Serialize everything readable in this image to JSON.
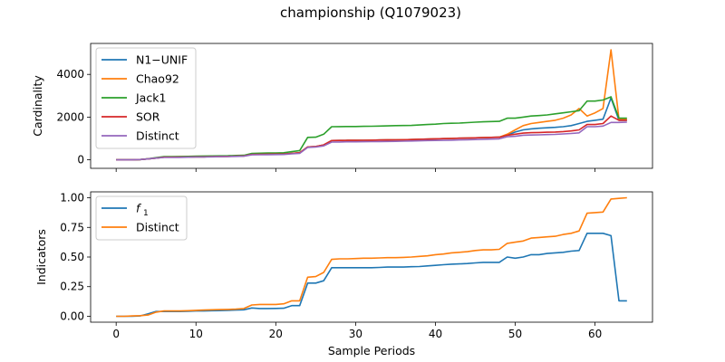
{
  "figure": {
    "title": "championship (Q1079023)"
  },
  "colors": {
    "blue": "#1f77b4",
    "orange": "#ff7f0e",
    "green": "#2ca02c",
    "red": "#d62728",
    "purple": "#9467bd"
  },
  "chart_data": [
    {
      "type": "line",
      "title": "",
      "xlabel": "",
      "ylabel": "Cardinality",
      "xlim": [
        -3.2,
        67.2
      ],
      "ylim": [
        -400,
        5450
      ],
      "xticks": [
        0,
        10,
        20,
        30,
        40,
        50,
        60
      ],
      "yticks": [
        0,
        2000,
        4000
      ],
      "yticklabels": [
        "0",
        "2000",
        "4000"
      ],
      "legend_position": "upper-left",
      "x": [
        0,
        1,
        2,
        3,
        4,
        5,
        6,
        7,
        8,
        9,
        10,
        11,
        12,
        13,
        14,
        15,
        16,
        17,
        18,
        19,
        20,
        21,
        22,
        23,
        24,
        25,
        26,
        27,
        28,
        29,
        30,
        31,
        32,
        33,
        34,
        35,
        36,
        37,
        38,
        39,
        40,
        41,
        42,
        43,
        44,
        45,
        46,
        47,
        48,
        49,
        50,
        51,
        52,
        53,
        54,
        55,
        56,
        57,
        58,
        59,
        60,
        61,
        62,
        63,
        64
      ],
      "series": [
        {
          "name": "N1−UNIF",
          "color": "#1f77b4",
          "values": [
            0,
            0,
            0,
            10,
            40,
            80,
            120,
            120,
            125,
            130,
            140,
            140,
            150,
            155,
            160,
            170,
            180,
            250,
            255,
            260,
            265,
            270,
            300,
            330,
            600,
            620,
            700,
            900,
            905,
            910,
            910,
            915,
            920,
            925,
            930,
            935,
            940,
            950,
            960,
            970,
            980,
            990,
            1000,
            1010,
            1020,
            1030,
            1040,
            1050,
            1060,
            1150,
            1300,
            1400,
            1450,
            1480,
            1500,
            1520,
            1550,
            1600,
            1700,
            1800,
            1850,
            1900,
            2900,
            1850,
            1850
          ]
        },
        {
          "name": "Chao92",
          "color": "#ff7f0e",
          "values": [
            0,
            0,
            0,
            10,
            40,
            80,
            120,
            120,
            125,
            130,
            140,
            140,
            150,
            155,
            160,
            170,
            180,
            250,
            255,
            260,
            265,
            270,
            300,
            330,
            600,
            620,
            700,
            900,
            905,
            910,
            910,
            915,
            920,
            925,
            930,
            935,
            940,
            950,
            960,
            970,
            980,
            990,
            1000,
            1010,
            1020,
            1030,
            1040,
            1050,
            1060,
            1200,
            1400,
            1600,
            1700,
            1750,
            1800,
            1850,
            1950,
            2100,
            2400,
            2050,
            2200,
            2400,
            5150,
            1900,
            1900
          ]
        },
        {
          "name": "Jack1",
          "color": "#2ca02c",
          "values": [
            0,
            0,
            0,
            10,
            50,
            100,
            150,
            150,
            155,
            160,
            170,
            175,
            180,
            185,
            190,
            200,
            210,
            300,
            310,
            315,
            320,
            330,
            380,
            430,
            1050,
            1060,
            1200,
            1550,
            1555,
            1560,
            1560,
            1565,
            1570,
            1580,
            1590,
            1600,
            1605,
            1610,
            1630,
            1650,
            1670,
            1700,
            1710,
            1720,
            1740,
            1760,
            1780,
            1790,
            1800,
            1950,
            1950,
            2000,
            2050,
            2070,
            2100,
            2150,
            2200,
            2250,
            2300,
            2750,
            2750,
            2800,
            2950,
            1950,
            1950
          ]
        },
        {
          "name": "SOR",
          "color": "#d62728",
          "values": [
            0,
            0,
            0,
            10,
            40,
            80,
            120,
            120,
            125,
            130,
            140,
            140,
            150,
            155,
            160,
            170,
            180,
            250,
            255,
            260,
            265,
            270,
            300,
            330,
            600,
            620,
            700,
            900,
            905,
            910,
            910,
            915,
            920,
            925,
            930,
            935,
            940,
            950,
            960,
            970,
            980,
            990,
            1000,
            1010,
            1020,
            1030,
            1040,
            1050,
            1060,
            1150,
            1200,
            1250,
            1270,
            1280,
            1290,
            1300,
            1320,
            1350,
            1400,
            1650,
            1650,
            1700,
            2050,
            1850,
            1850
          ]
        },
        {
          "name": "Distinct",
          "color": "#9467bd",
          "values": [
            0,
            0,
            0,
            10,
            40,
            80,
            110,
            110,
            115,
            120,
            130,
            130,
            140,
            145,
            150,
            160,
            170,
            230,
            235,
            240,
            245,
            250,
            280,
            300,
            580,
            600,
            650,
            830,
            835,
            840,
            840,
            845,
            850,
            855,
            860,
            865,
            870,
            880,
            890,
            900,
            905,
            910,
            920,
            930,
            940,
            950,
            960,
            970,
            980,
            1080,
            1100,
            1150,
            1160,
            1170,
            1180,
            1190,
            1210,
            1230,
            1260,
            1550,
            1550,
            1580,
            1750,
            1750,
            1760
          ]
        }
      ]
    },
    {
      "type": "line",
      "title": "",
      "xlabel": "Sample Periods",
      "ylabel": "Indicators",
      "xlim": [
        -3.2,
        67.2
      ],
      "ylim": [
        -0.05,
        1.05
      ],
      "xticks": [
        0,
        10,
        20,
        30,
        40,
        50,
        60
      ],
      "xticklabels": [
        "0",
        "10",
        "20",
        "30",
        "40",
        "50",
        "60"
      ],
      "yticks": [
        0,
        0.25,
        0.5,
        0.75,
        1.0
      ],
      "yticklabels": [
        "0.00",
        "0.25",
        "0.50",
        "0.75",
        "1.00"
      ],
      "legend_position": "upper-left",
      "x": [
        0,
        1,
        2,
        3,
        4,
        5,
        6,
        7,
        8,
        9,
        10,
        11,
        12,
        13,
        14,
        15,
        16,
        17,
        18,
        19,
        20,
        21,
        22,
        23,
        24,
        25,
        26,
        27,
        28,
        29,
        30,
        31,
        32,
        33,
        34,
        35,
        36,
        37,
        38,
        39,
        40,
        41,
        42,
        43,
        44,
        45,
        46,
        47,
        48,
        49,
        50,
        51,
        52,
        53,
        54,
        55,
        56,
        57,
        58,
        59,
        60,
        61,
        62,
        63,
        64
      ],
      "series": [
        {
          "name": "f",
          "name_sub": "1",
          "color": "#1f77b4",
          "values": [
            0,
            0,
            0,
            0.003,
            0.02,
            0.04,
            0.04,
            0.04,
            0.04,
            0.042,
            0.045,
            0.045,
            0.047,
            0.048,
            0.05,
            0.052,
            0.055,
            0.07,
            0.065,
            0.065,
            0.066,
            0.068,
            0.09,
            0.09,
            0.28,
            0.28,
            0.3,
            0.41,
            0.41,
            0.41,
            0.41,
            0.41,
            0.41,
            0.412,
            0.415,
            0.415,
            0.415,
            0.418,
            0.42,
            0.425,
            0.43,
            0.435,
            0.44,
            0.442,
            0.445,
            0.45,
            0.455,
            0.455,
            0.455,
            0.5,
            0.49,
            0.5,
            0.52,
            0.52,
            0.53,
            0.535,
            0.54,
            0.55,
            0.555,
            0.7,
            0.7,
            0.7,
            0.68,
            0.13,
            0.13
          ]
        },
        {
          "name": "Distinct",
          "color": "#ff7f0e",
          "values": [
            0,
            0,
            0.003,
            0.005,
            0.01,
            0.035,
            0.045,
            0.045,
            0.045,
            0.047,
            0.05,
            0.052,
            0.055,
            0.056,
            0.058,
            0.06,
            0.065,
            0.095,
            0.1,
            0.1,
            0.1,
            0.105,
            0.13,
            0.13,
            0.33,
            0.335,
            0.37,
            0.48,
            0.485,
            0.485,
            0.487,
            0.49,
            0.49,
            0.492,
            0.495,
            0.495,
            0.497,
            0.5,
            0.505,
            0.51,
            0.52,
            0.525,
            0.535,
            0.54,
            0.545,
            0.555,
            0.56,
            0.56,
            0.565,
            0.615,
            0.625,
            0.635,
            0.66,
            0.665,
            0.67,
            0.675,
            0.69,
            0.7,
            0.72,
            0.87,
            0.875,
            0.88,
            0.99,
            0.995,
            1.0
          ]
        }
      ]
    }
  ]
}
